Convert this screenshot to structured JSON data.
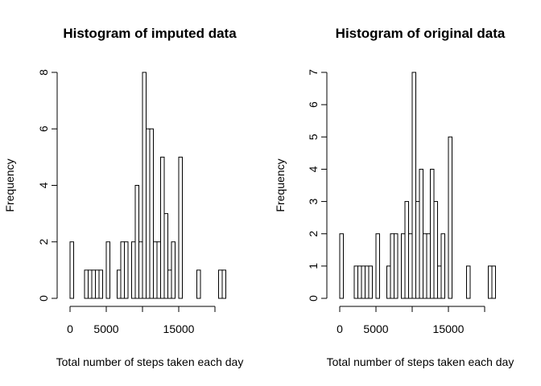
{
  "chart_data": [
    {
      "type": "bar",
      "title": "Histogram of imputed data",
      "xlabel": "Total number of steps taken each day",
      "ylabel": "Frequency",
      "bin_width": 500,
      "xlim": [
        0,
        22500
      ],
      "ylim": [
        0,
        8
      ],
      "x_ticks": [
        0,
        5000,
        10000,
        15000,
        20000
      ],
      "x_tick_labels": [
        "0",
        "5000",
        "",
        "15000",
        ""
      ],
      "y_ticks": [
        0,
        2,
        4,
        6,
        8
      ],
      "y_tick_labels": [
        "0",
        "2",
        "4",
        "6",
        "8"
      ],
      "bins": [
        {
          "x0": 0,
          "x1": 500,
          "count": 2
        },
        {
          "x0": 2000,
          "x1": 2500,
          "count": 1
        },
        {
          "x0": 2500,
          "x1": 3000,
          "count": 1
        },
        {
          "x0": 3000,
          "x1": 3500,
          "count": 1
        },
        {
          "x0": 3500,
          "x1": 4000,
          "count": 1
        },
        {
          "x0": 4000,
          "x1": 4500,
          "count": 1
        },
        {
          "x0": 5000,
          "x1": 5500,
          "count": 2
        },
        {
          "x0": 6500,
          "x1": 7000,
          "count": 1
        },
        {
          "x0": 7000,
          "x1": 7500,
          "count": 2
        },
        {
          "x0": 7500,
          "x1": 8000,
          "count": 2
        },
        {
          "x0": 8500,
          "x1": 9000,
          "count": 2
        },
        {
          "x0": 9000,
          "x1": 9500,
          "count": 4
        },
        {
          "x0": 9500,
          "x1": 10000,
          "count": 2
        },
        {
          "x0": 10000,
          "x1": 10500,
          "count": 8
        },
        {
          "x0": 10500,
          "x1": 11000,
          "count": 6
        },
        {
          "x0": 11000,
          "x1": 11500,
          "count": 6
        },
        {
          "x0": 11500,
          "x1": 12000,
          "count": 2
        },
        {
          "x0": 12000,
          "x1": 12500,
          "count": 2
        },
        {
          "x0": 12500,
          "x1": 13000,
          "count": 5
        },
        {
          "x0": 13000,
          "x1": 13500,
          "count": 3
        },
        {
          "x0": 13500,
          "x1": 14000,
          "count": 1
        },
        {
          "x0": 14000,
          "x1": 14500,
          "count": 2
        },
        {
          "x0": 15000,
          "x1": 15500,
          "count": 5
        },
        {
          "x0": 17500,
          "x1": 18000,
          "count": 1
        },
        {
          "x0": 20500,
          "x1": 21000,
          "count": 1
        },
        {
          "x0": 21000,
          "x1": 21500,
          "count": 1
        }
      ]
    },
    {
      "type": "bar",
      "title": "Histogram of original data",
      "xlabel": "Total number of steps taken each day",
      "ylabel": "Frequency",
      "bin_width": 500,
      "xlim": [
        0,
        22500
      ],
      "ylim": [
        0,
        7
      ],
      "x_ticks": [
        0,
        5000,
        10000,
        15000,
        20000
      ],
      "x_tick_labels": [
        "0",
        "5000",
        "",
        "15000",
        ""
      ],
      "y_ticks": [
        0,
        1,
        2,
        3,
        4,
        5,
        6,
        7
      ],
      "y_tick_labels": [
        "0",
        "1",
        "2",
        "3",
        "4",
        "5",
        "6",
        "7"
      ],
      "bins": [
        {
          "x0": 0,
          "x1": 500,
          "count": 2
        },
        {
          "x0": 2000,
          "x1": 2500,
          "count": 1
        },
        {
          "x0": 2500,
          "x1": 3000,
          "count": 1
        },
        {
          "x0": 3000,
          "x1": 3500,
          "count": 1
        },
        {
          "x0": 3500,
          "x1": 4000,
          "count": 1
        },
        {
          "x0": 4000,
          "x1": 4500,
          "count": 1
        },
        {
          "x0": 5000,
          "x1": 5500,
          "count": 2
        },
        {
          "x0": 6500,
          "x1": 7000,
          "count": 1
        },
        {
          "x0": 7000,
          "x1": 7500,
          "count": 2
        },
        {
          "x0": 7500,
          "x1": 8000,
          "count": 2
        },
        {
          "x0": 8500,
          "x1": 9000,
          "count": 2
        },
        {
          "x0": 9000,
          "x1": 9500,
          "count": 3
        },
        {
          "x0": 9500,
          "x1": 10000,
          "count": 2
        },
        {
          "x0": 10000,
          "x1": 10500,
          "count": 7
        },
        {
          "x0": 10500,
          "x1": 11000,
          "count": 3
        },
        {
          "x0": 11000,
          "x1": 11500,
          "count": 4
        },
        {
          "x0": 11500,
          "x1": 12000,
          "count": 2
        },
        {
          "x0": 12000,
          "x1": 12500,
          "count": 2
        },
        {
          "x0": 12500,
          "x1": 13000,
          "count": 4
        },
        {
          "x0": 13000,
          "x1": 13500,
          "count": 3
        },
        {
          "x0": 13500,
          "x1": 14000,
          "count": 1
        },
        {
          "x0": 14000,
          "x1": 14500,
          "count": 2
        },
        {
          "x0": 15000,
          "x1": 15500,
          "count": 5
        },
        {
          "x0": 17500,
          "x1": 18000,
          "count": 1
        },
        {
          "x0": 20500,
          "x1": 21000,
          "count": 1
        },
        {
          "x0": 21000,
          "x1": 21500,
          "count": 1
        }
      ]
    }
  ]
}
